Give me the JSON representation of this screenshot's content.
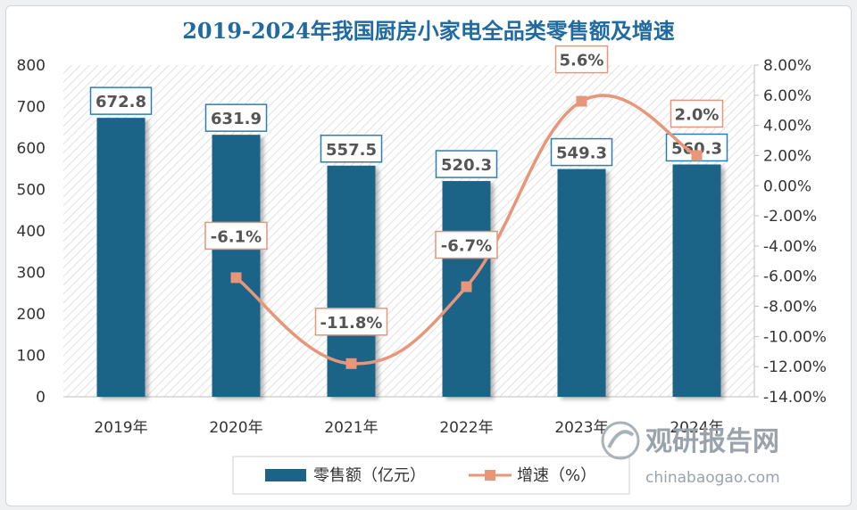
{
  "chart_data": {
    "type": "bar",
    "title": "2019-2024年我国厨房小家电全品类零售额及增速",
    "categories": [
      "2019年",
      "2020年",
      "2021年",
      "2022年",
      "2023年",
      "2024年"
    ],
    "series": [
      {
        "name": "零售额（亿元）",
        "type": "bar",
        "axis": "left",
        "values": [
          672.8,
          631.9,
          557.5,
          520.3,
          549.3,
          560.3
        ],
        "labels": [
          "672.8",
          "631.9",
          "557.5",
          "520.3",
          "549.3",
          "560.3"
        ]
      },
      {
        "name": "增速（%）",
        "type": "line",
        "axis": "right",
        "values": [
          null,
          -6.1,
          -11.8,
          -6.7,
          5.6,
          2.0
        ],
        "labels": [
          "",
          "-6.1%",
          "-11.8%",
          "-6.7%",
          "5.6%",
          "2.0%"
        ]
      }
    ],
    "ylim_left": [
      0,
      800
    ],
    "yticks_left": [
      "0",
      "100",
      "200",
      "300",
      "400",
      "500",
      "600",
      "700",
      "800"
    ],
    "ylim_right": [
      -14,
      8
    ],
    "yticks_right": [
      "-14.00%",
      "-12.00%",
      "-10.00%",
      "-8.00%",
      "-6.00%",
      "-4.00%",
      "-2.00%",
      "0.00%",
      "2.00%",
      "4.00%",
      "6.00%",
      "8.00%"
    ],
    "legend_position": "bottom",
    "colors": {
      "bar": "#1b6488",
      "line": "#e8967a",
      "title": "#1f6aa0"
    }
  },
  "watermark": {
    "name_cn": "观研报告网",
    "url": "chinabaogao.com"
  }
}
